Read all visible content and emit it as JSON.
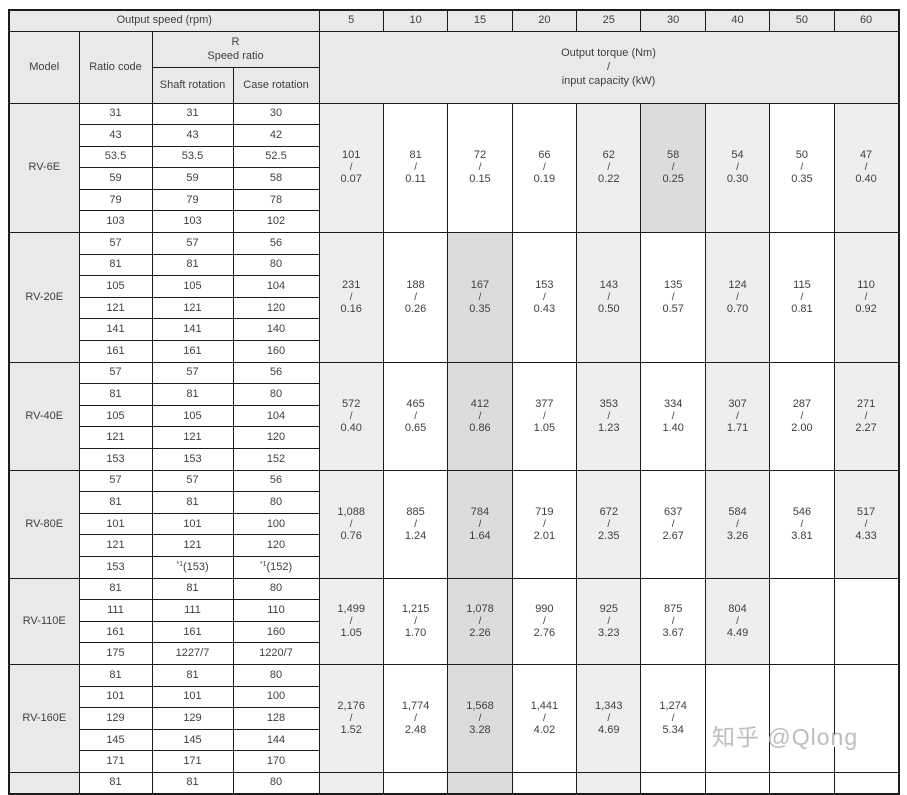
{
  "table": {
    "output_speed_label": "Output speed (rpm)",
    "speeds": [
      "5",
      "10",
      "15",
      "20",
      "25",
      "30",
      "40",
      "50",
      "60"
    ],
    "model_label": "Model",
    "ratio_code_label": "Ratio code",
    "speed_ratio_r": "R",
    "speed_ratio_label": "Speed ratio",
    "shaft_rotation_label": "Shaft rotation",
    "case_rotation_label": "Case rotation",
    "torque_header": {
      "line1": "Output torque (Nm)",
      "slash": "/",
      "line2": "input capacity (kW)"
    },
    "models": [
      {
        "name": "RV-6E",
        "highlight_index": 5,
        "ratios": [
          {
            "code": "31",
            "shaft": "31",
            "case": "30"
          },
          {
            "code": "43",
            "shaft": "43",
            "case": "42"
          },
          {
            "code": "53.5",
            "shaft": "53.5",
            "case": "52.5"
          },
          {
            "code": "59",
            "shaft": "59",
            "case": "58"
          },
          {
            "code": "79",
            "shaft": "79",
            "case": "78"
          },
          {
            "code": "103",
            "shaft": "103",
            "case": "102"
          }
        ],
        "torque": [
          {
            "nm": "101",
            "kw": "0.07"
          },
          {
            "nm": "81",
            "kw": "0.11"
          },
          {
            "nm": "72",
            "kw": "0.15"
          },
          {
            "nm": "66",
            "kw": "0.19"
          },
          {
            "nm": "62",
            "kw": "0.22"
          },
          {
            "nm": "58",
            "kw": "0.25"
          },
          {
            "nm": "54",
            "kw": "0.30"
          },
          {
            "nm": "50",
            "kw": "0.35"
          },
          {
            "nm": "47",
            "kw": "0.40"
          }
        ]
      },
      {
        "name": "RV-20E",
        "highlight_index": 2,
        "ratios": [
          {
            "code": "57",
            "shaft": "57",
            "case": "56"
          },
          {
            "code": "81",
            "shaft": "81",
            "case": "80"
          },
          {
            "code": "105",
            "shaft": "105",
            "case": "104"
          },
          {
            "code": "121",
            "shaft": "121",
            "case": "120"
          },
          {
            "code": "141",
            "shaft": "141",
            "case": "140"
          },
          {
            "code": "161",
            "shaft": "161",
            "case": "160"
          }
        ],
        "torque": [
          {
            "nm": "231",
            "kw": "0.16"
          },
          {
            "nm": "188",
            "kw": "0.26"
          },
          {
            "nm": "167",
            "kw": "0.35"
          },
          {
            "nm": "153",
            "kw": "0.43"
          },
          {
            "nm": "143",
            "kw": "0.50"
          },
          {
            "nm": "135",
            "kw": "0.57"
          },
          {
            "nm": "124",
            "kw": "0.70"
          },
          {
            "nm": "115",
            "kw": "0.81"
          },
          {
            "nm": "110",
            "kw": "0.92"
          }
        ]
      },
      {
        "name": "RV-40E",
        "highlight_index": 2,
        "ratios": [
          {
            "code": "57",
            "shaft": "57",
            "case": "56"
          },
          {
            "code": "81",
            "shaft": "81",
            "case": "80"
          },
          {
            "code": "105",
            "shaft": "105",
            "case": "104"
          },
          {
            "code": "121",
            "shaft": "121",
            "case": "120"
          },
          {
            "code": "153",
            "shaft": "153",
            "case": "152"
          }
        ],
        "torque": [
          {
            "nm": "572",
            "kw": "0.40"
          },
          {
            "nm": "465",
            "kw": "0.65"
          },
          {
            "nm": "412",
            "kw": "0.86"
          },
          {
            "nm": "377",
            "kw": "1.05"
          },
          {
            "nm": "353",
            "kw": "1.23"
          },
          {
            "nm": "334",
            "kw": "1.40"
          },
          {
            "nm": "307",
            "kw": "1.71"
          },
          {
            "nm": "287",
            "kw": "2.00"
          },
          {
            "nm": "271",
            "kw": "2.27"
          }
        ]
      },
      {
        "name": "RV-80E",
        "highlight_index": 2,
        "ratios": [
          {
            "code": "57",
            "shaft": "57",
            "case": "56"
          },
          {
            "code": "81",
            "shaft": "81",
            "case": "80"
          },
          {
            "code": "101",
            "shaft": "101",
            "case": "100"
          },
          {
            "code": "121",
            "shaft": "121",
            "case": "120"
          },
          {
            "code": "153",
            "shaft": "(153)",
            "case": "(152)",
            "shaft_sup": "*1",
            "case_sup": "*1"
          }
        ],
        "torque": [
          {
            "nm": "1,088",
            "kw": "0.76"
          },
          {
            "nm": "885",
            "kw": "1.24"
          },
          {
            "nm": "784",
            "kw": "1.64"
          },
          {
            "nm": "719",
            "kw": "2.01"
          },
          {
            "nm": "672",
            "kw": "2.35"
          },
          {
            "nm": "637",
            "kw": "2.67"
          },
          {
            "nm": "584",
            "kw": "3.26"
          },
          {
            "nm": "546",
            "kw": "3.81"
          },
          {
            "nm": "517",
            "kw": "4.33"
          }
        ]
      },
      {
        "name": "RV-110E",
        "highlight_index": 2,
        "ratios": [
          {
            "code": "81",
            "shaft": "81",
            "case": "80"
          },
          {
            "code": "111",
            "shaft": "111",
            "case": "110"
          },
          {
            "code": "161",
            "shaft": "161",
            "case": "160"
          },
          {
            "code": "175",
            "shaft": "1227/7",
            "case": "1220/7"
          }
        ],
        "torque": [
          {
            "nm": "1,499",
            "kw": "1.05"
          },
          {
            "nm": "1,215",
            "kw": "1.70"
          },
          {
            "nm": "1,078",
            "kw": "2.26"
          },
          {
            "nm": "990",
            "kw": "2.76"
          },
          {
            "nm": "925",
            "kw": "3.23"
          },
          {
            "nm": "875",
            "kw": "3.67"
          },
          {
            "nm": "804",
            "kw": "4.49"
          },
          null,
          null
        ]
      },
      {
        "name": "RV-160E",
        "highlight_index": 2,
        "ratios": [
          {
            "code": "81",
            "shaft": "81",
            "case": "80"
          },
          {
            "code": "101",
            "shaft": "101",
            "case": "100"
          },
          {
            "code": "129",
            "shaft": "129",
            "case": "128"
          },
          {
            "code": "145",
            "shaft": "145",
            "case": "144"
          },
          {
            "code": "171",
            "shaft": "171",
            "case": "170"
          }
        ],
        "torque": [
          {
            "nm": "2,176",
            "kw": "1.52"
          },
          {
            "nm": "1,774",
            "kw": "2.48"
          },
          {
            "nm": "1,568",
            "kw": "3.28"
          },
          {
            "nm": "1,441",
            "kw": "4.02"
          },
          {
            "nm": "1,343",
            "kw": "4.69"
          },
          {
            "nm": "1,274",
            "kw": "5.34"
          },
          null,
          null,
          null
        ]
      },
      {
        "name": "",
        "partial": true,
        "highlight_index": 2,
        "ratios": [
          {
            "code": "81",
            "shaft": "81",
            "case": "80"
          }
        ],
        "torque": [
          {
            "nm": "",
            "kw": ""
          },
          null,
          {
            "nm": "",
            "kw": ""
          },
          null,
          {
            "nm": "",
            "kw": ""
          },
          null,
          null,
          null,
          null
        ]
      }
    ]
  },
  "watermark": {
    "text": "知乎 @Qlong"
  },
  "colors": {
    "header_bg": "#e9e9e9",
    "stripe_bg": "#eeeeee",
    "highlight_bg": "#dcdcdc",
    "border": "#1c1c1c",
    "text": "#3f3f3f",
    "watermark": "#bdbdbd"
  }
}
